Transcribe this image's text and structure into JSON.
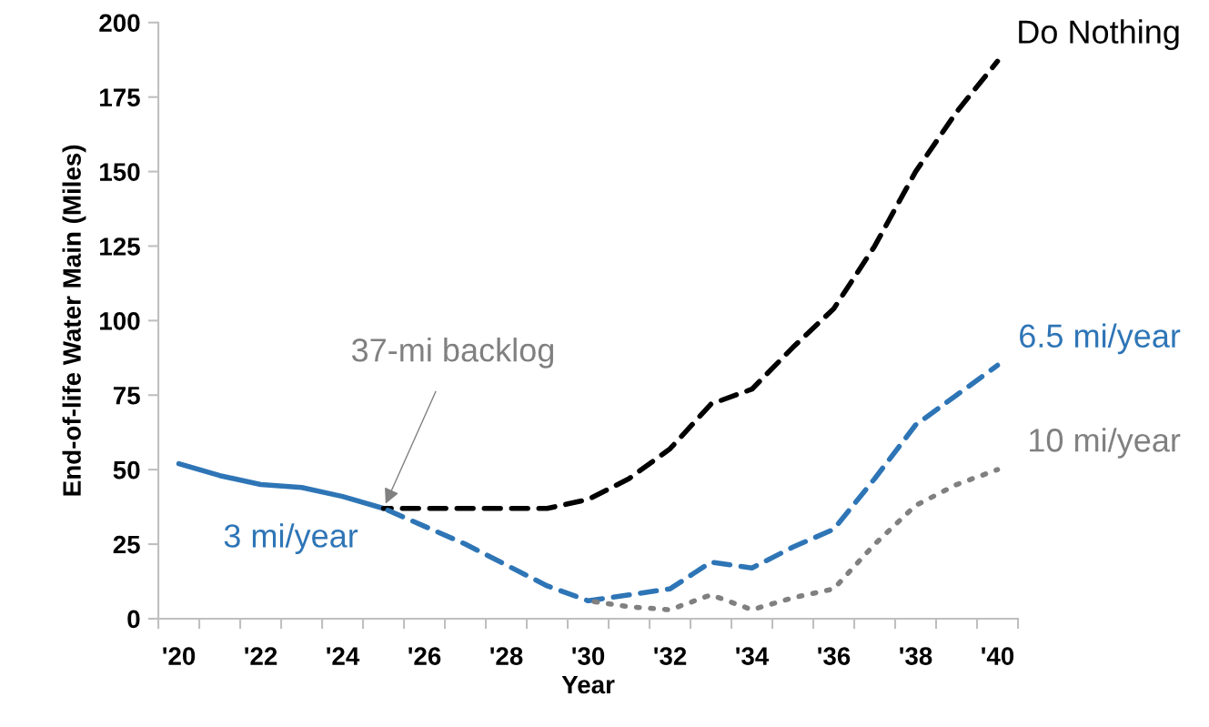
{
  "chart_data": {
    "type": "line",
    "xlabel": "Year",
    "ylabel": "End-of-life Water Main (Miles)",
    "xlim": [
      2019.5,
      2040.5
    ],
    "xticks": [
      {
        "value": 2019.5,
        "label": null
      },
      {
        "value": 2020,
        "label": "'20"
      },
      {
        "value": 2020.5,
        "label": null
      },
      {
        "value": 2021.5,
        "label": null
      },
      {
        "value": 2022,
        "label": "'22"
      },
      {
        "value": 2022.5,
        "label": null
      },
      {
        "value": 2023.5,
        "label": null
      },
      {
        "value": 2024,
        "label": "'24"
      },
      {
        "value": 2024.5,
        "label": null
      },
      {
        "value": 2025.5,
        "label": null
      },
      {
        "value": 2026,
        "label": "'26"
      },
      {
        "value": 2026.5,
        "label": null
      },
      {
        "value": 2027.5,
        "label": null
      },
      {
        "value": 2028,
        "label": "'28"
      },
      {
        "value": 2028.5,
        "label": null
      },
      {
        "value": 2029.5,
        "label": null
      },
      {
        "value": 2030,
        "label": "'30"
      },
      {
        "value": 2030.5,
        "label": null
      },
      {
        "value": 2031.5,
        "label": null
      },
      {
        "value": 2032,
        "label": "'32"
      },
      {
        "value": 2032.5,
        "label": null
      },
      {
        "value": 2033.5,
        "label": null
      },
      {
        "value": 2034,
        "label": "'34"
      },
      {
        "value": 2034.5,
        "label": null
      },
      {
        "value": 2035.5,
        "label": null
      },
      {
        "value": 2036,
        "label": "'36"
      },
      {
        "value": 2036.5,
        "label": null
      },
      {
        "value": 2037.5,
        "label": null
      },
      {
        "value": 2038,
        "label": "'38"
      },
      {
        "value": 2038.5,
        "label": null
      },
      {
        "value": 2039.5,
        "label": null
      },
      {
        "value": 2040,
        "label": "'40"
      },
      {
        "value": 2040.5,
        "label": null
      }
    ],
    "ylim": [
      0,
      200
    ],
    "yticks": [
      0,
      25,
      50,
      75,
      100,
      125,
      150,
      175,
      200
    ],
    "grid": false,
    "legend": false,
    "marker": "none",
    "series": [
      {
        "name": "3 mi/year",
        "color": "#2e75b6",
        "line_style": "solid",
        "x": [
          2020,
          2021,
          2022,
          2023,
          2024,
          2025
        ],
        "values": [
          52,
          48,
          45,
          44,
          41,
          37
        ]
      },
      {
        "name": "Do Nothing",
        "color": "#000000",
        "line_style": "dashed",
        "x": [
          2025,
          2026,
          2027,
          2028,
          2029,
          2030,
          2031,
          2032,
          2033,
          2034,
          2035,
          2036,
          2037,
          2038,
          2039,
          2040
        ],
        "values": [
          37,
          37,
          37,
          37,
          37,
          40,
          47,
          57,
          72,
          77,
          91,
          104,
          125,
          150,
          170,
          187
        ]
      },
      {
        "name": "6.5 mi/year",
        "color": "#2e75b6",
        "line_style": "dashed",
        "x": [
          2025,
          2026,
          2027,
          2028,
          2029,
          2030,
          2031,
          2032,
          2033,
          2034,
          2035,
          2036,
          2037,
          2038,
          2039,
          2040
        ],
        "values": [
          37,
          31,
          25,
          18,
          11,
          6,
          8,
          10,
          19,
          17,
          24,
          30,
          47,
          65,
          75,
          85
        ]
      },
      {
        "name": "10 mi/year",
        "color": "#808080",
        "line_style": "dotted",
        "x": [
          2030,
          2031,
          2032,
          2033,
          2034,
          2035,
          2036,
          2037,
          2038,
          2039,
          2040
        ],
        "values": [
          6,
          4,
          3,
          8,
          3,
          7,
          10,
          25,
          38,
          45,
          50
        ]
      }
    ],
    "annotations": [
      {
        "text": "37-mi backlog",
        "x": 2025,
        "y": 37
      }
    ]
  }
}
